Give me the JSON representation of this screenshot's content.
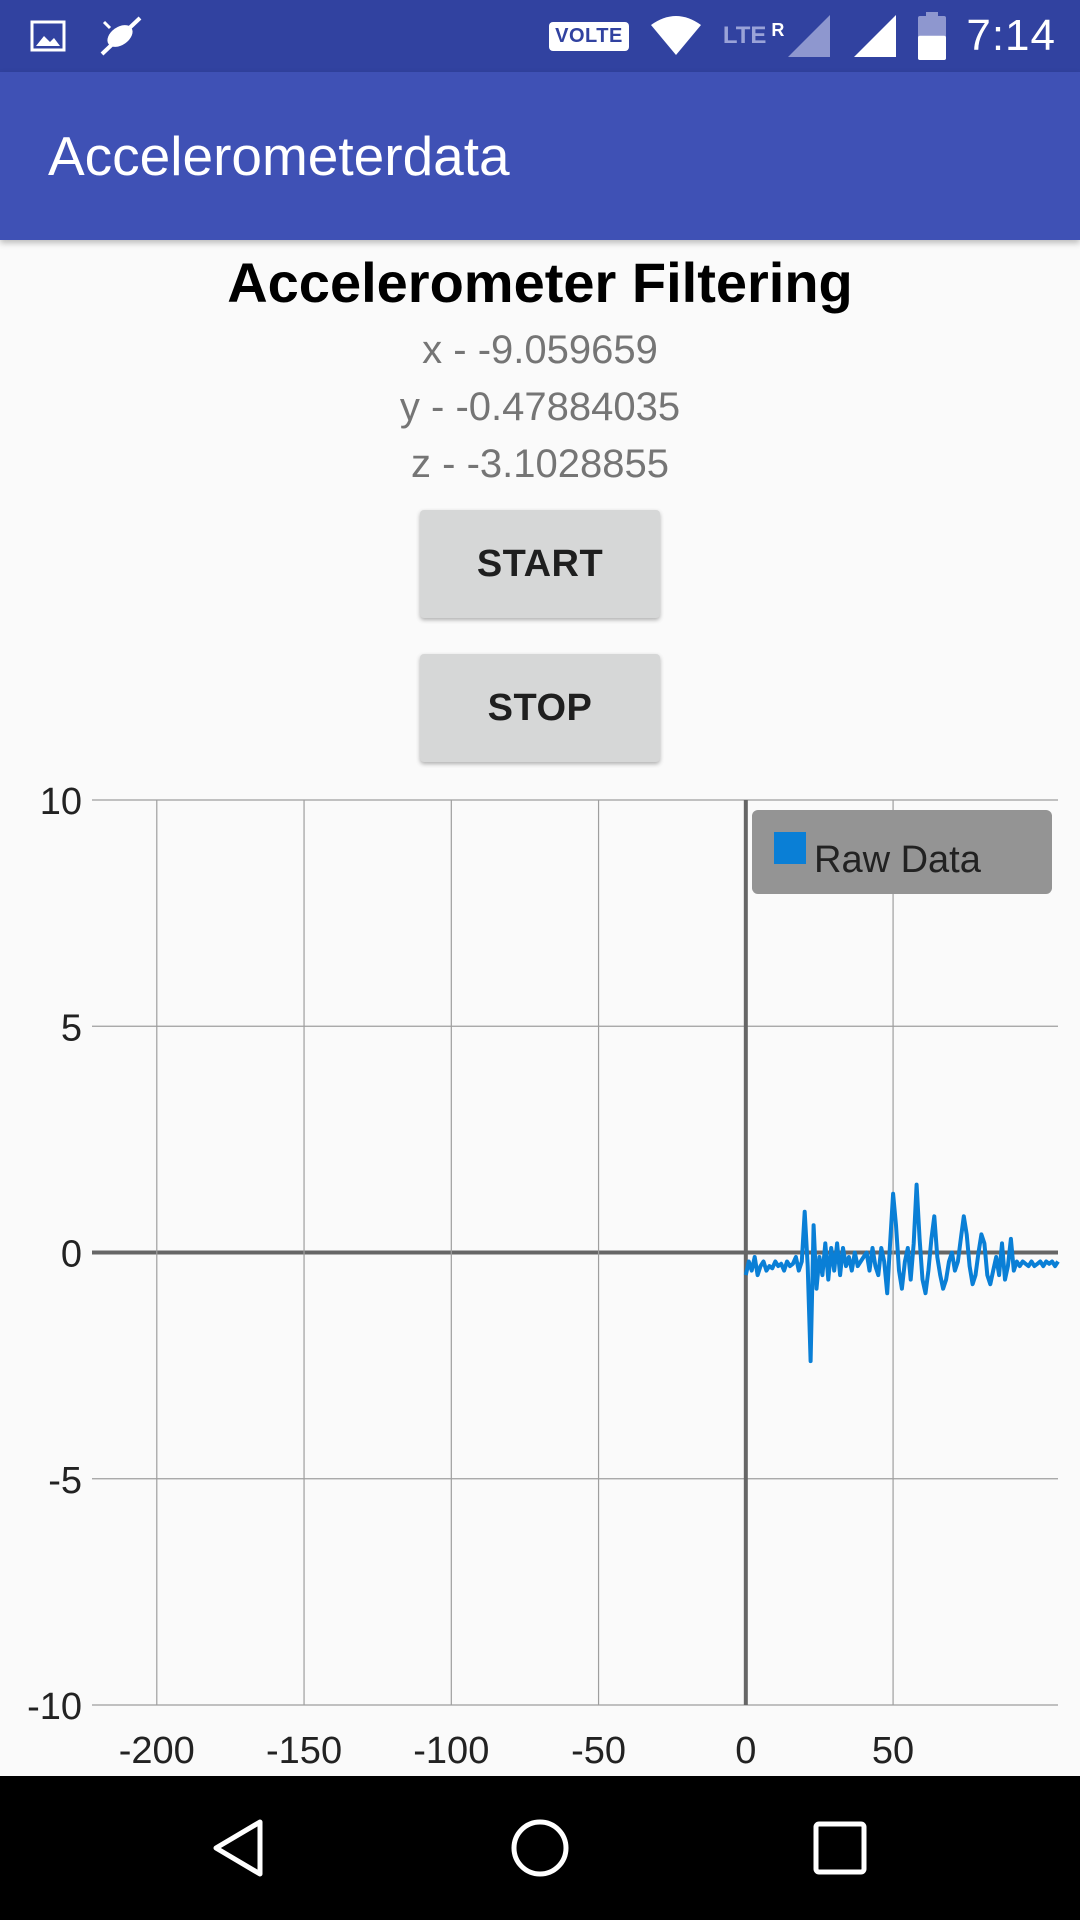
{
  "status_bar": {
    "volte_label": "VOLTE",
    "lte_label": "LTE",
    "roaming_label": "R",
    "time": "7:14",
    "icons": [
      "gallery-icon",
      "mute-icon",
      "wifi-icon",
      "signal-icon",
      "signal-full-icon",
      "battery-icon"
    ],
    "battery_level": 0.55
  },
  "app_bar": {
    "title": "Accelerometerdata",
    "color": "#3f51b5"
  },
  "main": {
    "heading": "Accelerometer Filtering",
    "x_reading": "x - -9.059659",
    "y_reading": "y - -0.47884035",
    "z_reading": "z - -3.1028855",
    "start_label": "START",
    "stop_label": "STOP"
  },
  "chart_data": {
    "type": "line",
    "title": "",
    "xlabel": "",
    "ylabel": "",
    "xlim": [
      -222,
      106
    ],
    "ylim": [
      -10,
      10
    ],
    "x_ticks": [
      -200,
      -150,
      -100,
      -50,
      0,
      50
    ],
    "y_ticks": [
      10,
      5,
      0,
      -5,
      -10
    ],
    "x_tick_labels": [
      "-200",
      "-150",
      "-100",
      "-50",
      "0",
      "50"
    ],
    "y_tick_labels": [
      "10",
      "5",
      "0",
      "-5",
      "-10"
    ],
    "grid": true,
    "legend": {
      "position": "top-right",
      "entries": [
        "Raw Data"
      ]
    },
    "series": [
      {
        "name": "Raw Data",
        "color": "#0a7fd6",
        "x": [
          0,
          1,
          2,
          3,
          4,
          5,
          6,
          7,
          8,
          9,
          10,
          11,
          12,
          13,
          14,
          15,
          16,
          17,
          18,
          19,
          20,
          21,
          22,
          23,
          24,
          25,
          26,
          27,
          28,
          29,
          30,
          31,
          32,
          33,
          34,
          35,
          36,
          37,
          38,
          39,
          40,
          41,
          42,
          43,
          44,
          45,
          46,
          47,
          48,
          49,
          50,
          51,
          52,
          53,
          54,
          55,
          56,
          57,
          58,
          59,
          60,
          61,
          62,
          63,
          64,
          65,
          66,
          67,
          68,
          69,
          70,
          71,
          72,
          73,
          74,
          75,
          76,
          77,
          78,
          79,
          80,
          81,
          82,
          83,
          84,
          85,
          86,
          87,
          88,
          89,
          90,
          91,
          92,
          93,
          94,
          95,
          96,
          97,
          98,
          99,
          100,
          101,
          102,
          103,
          104,
          105,
          106
        ],
        "values": [
          -0.5,
          -0.2,
          -0.4,
          -0.1,
          -0.5,
          -0.3,
          -0.2,
          -0.4,
          -0.3,
          -0.35,
          -0.2,
          -0.3,
          -0.25,
          -0.4,
          -0.2,
          -0.3,
          -0.25,
          -0.1,
          -0.4,
          -0.2,
          0.9,
          -0.3,
          -2.4,
          0.6,
          -0.8,
          -0.1,
          -0.5,
          0.2,
          -0.6,
          0.1,
          -0.4,
          0.2,
          -0.5,
          0.1,
          -0.3,
          -0.1,
          -0.4,
          0.0,
          -0.3,
          -0.2,
          -0.1,
          0.0,
          -0.4,
          0.1,
          -0.3,
          -0.5,
          0.1,
          -0.2,
          -0.9,
          0.2,
          1.3,
          0.6,
          -0.4,
          -0.8,
          -0.2,
          0.1,
          -0.6,
          0.2,
          1.5,
          0.3,
          -0.6,
          -0.9,
          -0.4,
          0.3,
          0.8,
          -0.1,
          -0.5,
          -0.8,
          -0.6,
          -0.2,
          0.0,
          -0.4,
          -0.2,
          0.3,
          0.8,
          0.4,
          -0.3,
          -0.7,
          -0.5,
          0.0,
          0.4,
          0.2,
          -0.5,
          -0.7,
          -0.4,
          -0.1,
          -0.5,
          0.2,
          -0.6,
          -0.3,
          0.3,
          -0.4,
          -0.2,
          -0.3,
          -0.2,
          -0.25,
          -0.3,
          -0.2,
          -0.3,
          -0.25,
          -0.2,
          -0.3,
          -0.2,
          -0.25,
          -0.2,
          -0.3,
          -0.2
        ]
      }
    ]
  },
  "nav_bar": {
    "icons": [
      "back-icon",
      "home-icon",
      "recents-icon"
    ]
  }
}
